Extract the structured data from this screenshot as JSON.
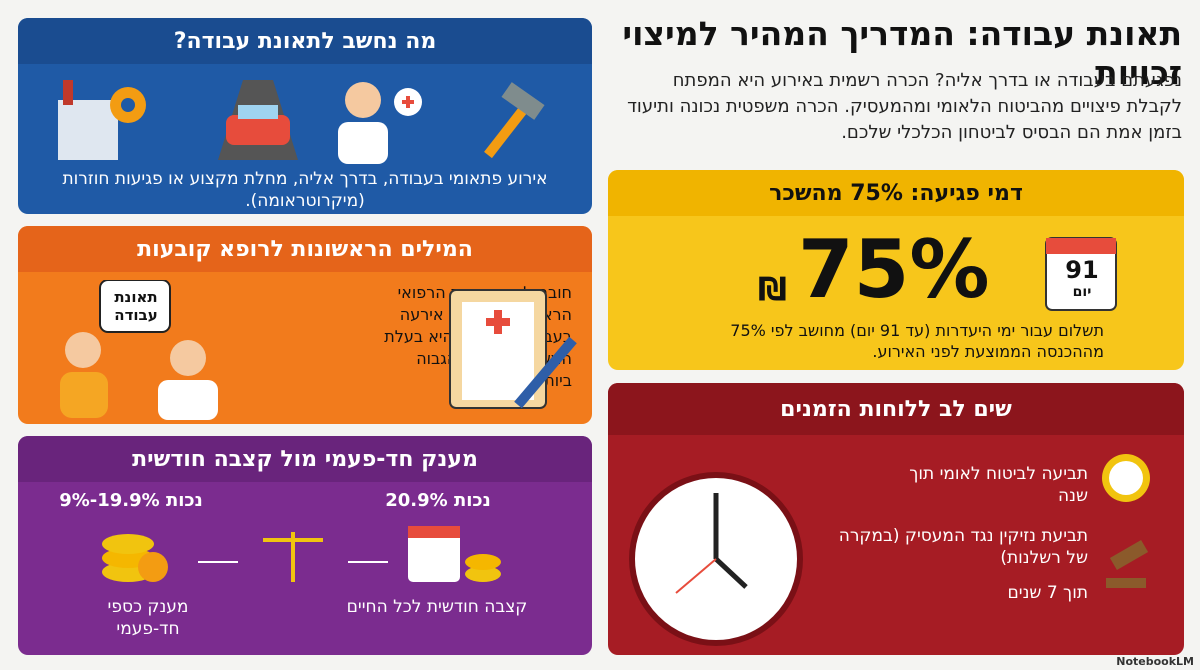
{
  "header": {
    "title": "תאונת עבודה: המדריך המהיר למיצוי זכויות",
    "intro": "נפגעתם בעבודה או בדרך אליה? הכרה רשמית באירוע היא המפתח לקבלת פיצויים מהביטוח הלאומי ומהמעסיק. הכרה משפטית נכונה ותיעוד בזמן אמת הם הבסיס לביטחון הכלכלי שלכם."
  },
  "definition": {
    "title": "מה נחשב לתאונת עבודה?",
    "body": "אירוע פתאומי בעבודה, בדרך אליה, מחלת מקצוע או פגיעות חוזרות (מיקרוטראומה)."
  },
  "doctor": {
    "title": "המילים הראשונות לרופא קובעות",
    "bubble": "תאונת עבודה",
    "body": "חובה לציין בתיעוד הרפואי הראשוני שהפגיעה אירעה בעבודה; גרסה זו היא בעלת המשקל הראייתי הגבוה ביותר."
  },
  "compensation": {
    "title": "מענק חד-פעמי מול קצבה חודשית",
    "pension_rate": "20.9% נכות",
    "pension_label": "קצבה חודשית לכל החיים",
    "grant_rate": "9%-19.9% נכות",
    "grant_label": "מענק כספי חד-פעמי"
  },
  "injury_pay": {
    "title": "דמי פגיעה: 75% מהשכר",
    "big": "75%",
    "currency": "₪",
    "calendar_number": "91",
    "calendar_unit": "יום",
    "body": "תשלום עבור ימי היעדרות (עד 91 יום) מחושב לפי 75% מההכנסה הממוצעת לפני האירוע."
  },
  "deadlines": {
    "title": "שים לב ללוחות הזמנים",
    "item1": "תביעה לביטוח לאומי תוך שנה",
    "item2": "תביעת נזיקין נגד המעסיק (במקרה של רשלנות)",
    "item2_time": "תוך 7 שנים"
  },
  "footer": {
    "brand": "NotebookLM"
  }
}
